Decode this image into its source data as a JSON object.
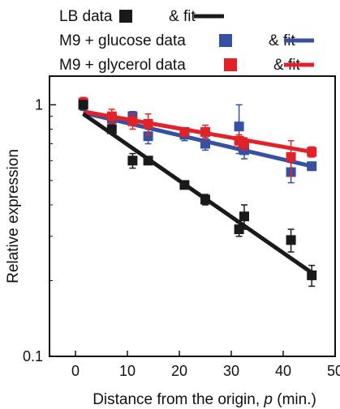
{
  "chart_data": {
    "type": "scatter",
    "xlabel_prefix": "Distance from the origin, ",
    "xlabel_var": "p",
    "xlabel_suffix": " (min.)",
    "ylabel": "Relative expression",
    "xlim": [
      -5,
      50
    ],
    "ylim": [
      0.1,
      1.3
    ],
    "yscale": "log",
    "xticks": [
      0,
      10,
      20,
      30,
      40,
      50
    ],
    "yticks": [
      0.1,
      1
    ],
    "ytick_labels": [
      "0.1",
      "1"
    ],
    "legend_position": "top-left, outside plot",
    "series": [
      {
        "name": "LB data",
        "fit_label": "& fit",
        "color": "#1a1a1a",
        "x": [
          1.5,
          7,
          11,
          14,
          21,
          25,
          31.5,
          32.5,
          41.5,
          45.5
        ],
        "y": [
          1.0,
          0.8,
          0.6,
          0.6,
          0.48,
          0.42,
          0.32,
          0.36,
          0.29,
          0.21
        ],
        "err": [
          0.04,
          0.03,
          0.04,
          0.02,
          0.015,
          0.02,
          0.02,
          0.04,
          0.03,
          0.02
        ],
        "fit": {
          "x": [
            1.5,
            45.5
          ],
          "y": [
            0.92,
            0.215
          ]
        }
      },
      {
        "name": "M9 + glucose data",
        "fit_label": "& fit",
        "color": "#3651a3",
        "x": [
          1.5,
          7,
          11,
          14,
          21,
          25,
          31.5,
          32.5,
          41.5,
          45.5
        ],
        "y": [
          1.0,
          0.88,
          0.9,
          0.75,
          0.76,
          0.7,
          0.82,
          0.66,
          0.54,
          0.57
        ],
        "err": [
          0.05,
          0.04,
          0.04,
          0.05,
          0.04,
          0.04,
          0.18,
          0.05,
          0.05,
          0.02
        ],
        "fit": {
          "x": [
            1.5,
            45.5
          ],
          "y": [
            0.93,
            0.57
          ]
        }
      },
      {
        "name": "M9 + glycerol data",
        "fit_label": "& fit",
        "color": "#e12228",
        "x": [
          1.5,
          7,
          11,
          14,
          21,
          25,
          31.5,
          32.5,
          41.5,
          45.5
        ],
        "y": [
          1.02,
          0.9,
          0.86,
          0.84,
          0.78,
          0.78,
          0.72,
          0.7,
          0.62,
          0.65
        ],
        "err": [
          0.05,
          0.06,
          0.06,
          0.08,
          0.03,
          0.05,
          0.04,
          0.04,
          0.1,
          0.03
        ],
        "fit": {
          "x": [
            1.5,
            45.5
          ],
          "y": [
            0.94,
            0.65
          ]
        }
      }
    ]
  }
}
